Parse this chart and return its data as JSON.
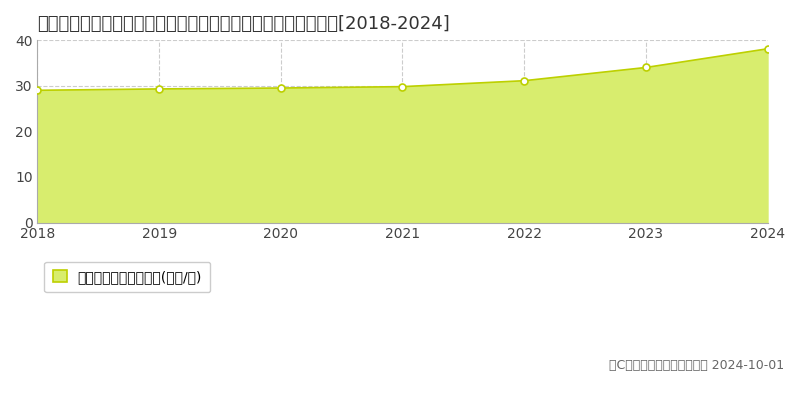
{
  "title": "茨城県つくば市学園の森２丁目２９番３　基準地価　地価推移[2018-2024]",
  "years": [
    2018,
    2019,
    2020,
    2021,
    2022,
    2023,
    2024
  ],
  "values": [
    29.0,
    29.3,
    29.5,
    29.8,
    31.1,
    34.0,
    38.1
  ],
  "ylim": [
    0,
    40
  ],
  "yticks": [
    0,
    10,
    20,
    30,
    40
  ],
  "line_color": "#bdd000",
  "fill_color": "#d8ed6e",
  "fill_alpha": 1.0,
  "marker_color": "white",
  "marker_edge_color": "#bdd000",
  "bg_color": "#ffffff",
  "grid_color": "#cccccc",
  "legend_label": "基準地価　平均坊単価(万円/坊)",
  "copyright_text": "（C）土地価格ドットコム　 2024-10-01",
  "title_fontsize": 13,
  "tick_fontsize": 10,
  "legend_fontsize": 10,
  "copyright_fontsize": 9
}
